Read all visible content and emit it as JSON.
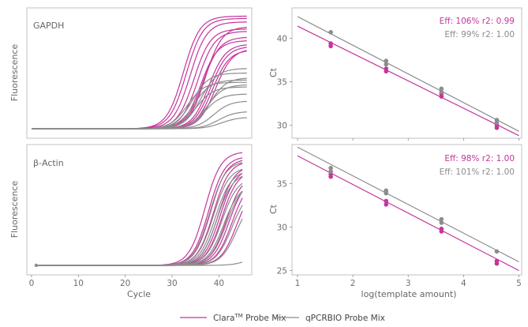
{
  "colors": {
    "clara": "#c4359b",
    "qpcrbio": "#8c8c8c"
  },
  "legend": {
    "clara_label": "Clara",
    "clara_sup": "TM",
    "clara_suffix": " Probe Mix",
    "qpcrbio_label": "qPCRBIO Probe Mix"
  },
  "chart_data": [
    {
      "type": "line",
      "title": "GAPDH",
      "ylabel": "Fluorescence",
      "xlabel": "",
      "xlim": [
        0,
        46
      ],
      "x_ticks": [],
      "y_ticks": [],
      "show_x_tick_labels": false,
      "series": [
        {
          "group": "clara",
          "curves": [
            {
              "ct": 29.0,
              "plateau": 0.97
            },
            {
              "ct": 29.6,
              "plateau": 0.95
            },
            {
              "ct": 31.2,
              "plateau": 0.86
            },
            {
              "ct": 32.0,
              "plateau": 0.84
            },
            {
              "ct": 33.0,
              "plateau": 0.79
            },
            {
              "ct": 33.5,
              "plateau": 0.88
            },
            {
              "ct": 34.2,
              "plateau": 0.73
            },
            {
              "ct": 35.0,
              "plateau": 0.68
            },
            {
              "ct": 35.6,
              "plateau": 0.69
            },
            {
              "ct": 30.4,
              "plateau": 0.92
            },
            {
              "ct": 32.6,
              "plateau": 0.76
            },
            {
              "ct": 34.6,
              "plateau": 0.71
            }
          ]
        },
        {
          "group": "qpcrbio",
          "curves": [
            {
              "ct": 29.8,
              "plateau": 0.4
            },
            {
              "ct": 30.8,
              "plateau": 0.48
            },
            {
              "ct": 31.6,
              "plateau": 0.36
            },
            {
              "ct": 32.6,
              "plateau": 0.52
            },
            {
              "ct": 33.4,
              "plateau": 0.3
            },
            {
              "ct": 34.4,
              "plateau": 0.44
            },
            {
              "ct": 35.2,
              "plateau": 0.24
            },
            {
              "ct": 36.2,
              "plateau": 0.15
            },
            {
              "ct": 31.2,
              "plateau": 0.42
            },
            {
              "ct": 33.8,
              "plateau": 0.38
            },
            {
              "ct": 36.8,
              "plateau": 0.1
            }
          ]
        }
      ]
    },
    {
      "type": "scatter",
      "title": "",
      "ylabel": "Ct",
      "xlabel": "",
      "xlim": [
        0.9,
        5.05
      ],
      "ylim": [
        28.5,
        43.5
      ],
      "x_ticks": [
        1,
        2,
        3,
        4,
        5
      ],
      "y_ticks": [
        30,
        35,
        40
      ],
      "show_x_tick_labels": false,
      "annotations": [
        {
          "group": "clara",
          "text": "Eff: 106% r2: 0.99"
        },
        {
          "group": "qpcrbio",
          "text": "Eff: 99% r2: 1.00"
        }
      ],
      "series": [
        {
          "group": "clara",
          "x": [
            1.6,
            1.6,
            2.6,
            2.6,
            3.6,
            3.6,
            4.6,
            4.6
          ],
          "y": [
            39.4,
            39.1,
            36.5,
            36.2,
            33.6,
            33.3,
            30.0,
            29.7
          ],
          "fit": [
            [
              1.0,
              41.4
            ],
            [
              5.0,
              28.8
            ]
          ]
        },
        {
          "group": "qpcrbio",
          "x": [
            1.6,
            2.6,
            2.6,
            3.6,
            3.6,
            4.6,
            4.6
          ],
          "y": [
            40.7,
            37.4,
            37.0,
            34.2,
            33.8,
            30.6,
            30.3
          ],
          "fit": [
            [
              1.0,
              42.5
            ],
            [
              5.0,
              29.3
            ]
          ]
        }
      ]
    },
    {
      "type": "line",
      "title": "β-Actin",
      "ylabel": "Fluorescence",
      "xlabel": "Cycle",
      "xlim": [
        -1,
        47
      ],
      "x_ticks": [
        0,
        10,
        20,
        30,
        40
      ],
      "y_ticks": [],
      "show_x_tick_labels": true,
      "series": [
        {
          "group": "clara",
          "curves": [
            {
              "ct": 34.0,
              "plateau": 0.98
            },
            {
              "ct": 34.8,
              "plateau": 0.94
            },
            {
              "ct": 35.8,
              "plateau": 0.9
            },
            {
              "ct": 36.8,
              "plateau": 0.86
            },
            {
              "ct": 37.6,
              "plateau": 0.82
            },
            {
              "ct": 38.6,
              "plateau": 0.78
            },
            {
              "ct": 39.8,
              "plateau": 0.74
            },
            {
              "ct": 40.8,
              "plateau": 0.7
            },
            {
              "ct": 35.2,
              "plateau": 0.92
            },
            {
              "ct": 37.2,
              "plateau": 0.84
            },
            {
              "ct": 39.2,
              "plateau": 0.76
            }
          ]
        },
        {
          "group": "qpcrbio",
          "curves": [
            {
              "ct": 35.0,
              "plateau": 0.9
            },
            {
              "ct": 35.8,
              "plateau": 0.85
            },
            {
              "ct": 36.6,
              "plateau": 0.8
            },
            {
              "ct": 37.6,
              "plateau": 0.76
            },
            {
              "ct": 38.6,
              "plateau": 0.72
            },
            {
              "ct": 39.8,
              "plateau": 0.66
            },
            {
              "ct": 40.8,
              "plateau": 0.6
            },
            {
              "ct": 36.2,
              "plateau": 0.82
            },
            {
              "ct": 38.0,
              "plateau": 0.7
            },
            {
              "ct": 44.0,
              "plateau": 0.12
            }
          ]
        }
      ]
    },
    {
      "type": "scatter",
      "title": "",
      "ylabel": "Ct",
      "xlabel": "log(template amount)",
      "xlim": [
        0.9,
        5.05
      ],
      "ylim": [
        24.5,
        39.5
      ],
      "x_ticks": [
        1,
        2,
        3,
        4,
        5
      ],
      "y_ticks": [
        25,
        30,
        35
      ],
      "show_x_tick_labels": true,
      "annotations": [
        {
          "group": "clara",
          "text": "Eff: 98% r2: 1.00"
        },
        {
          "group": "qpcrbio",
          "text": "Eff: 101% r2: 1.00"
        }
      ],
      "series": [
        {
          "group": "clara",
          "x": [
            1.6,
            1.6,
            2.6,
            2.6,
            3.6,
            3.6,
            4.6,
            4.6
          ],
          "y": [
            36.1,
            35.8,
            33.0,
            32.6,
            29.8,
            29.5,
            26.1,
            25.8
          ],
          "fit": [
            [
              1.0,
              38.2
            ],
            [
              5.0,
              25.0
            ]
          ]
        },
        {
          "group": "qpcrbio",
          "x": [
            1.6,
            1.6,
            2.6,
            2.6,
            3.6,
            3.6,
            4.6
          ],
          "y": [
            36.8,
            36.4,
            34.2,
            33.9,
            30.9,
            30.5,
            27.2
          ],
          "fit": [
            [
              1.0,
              39.2
            ],
            [
              5.0,
              26.0
            ]
          ]
        }
      ]
    }
  ]
}
